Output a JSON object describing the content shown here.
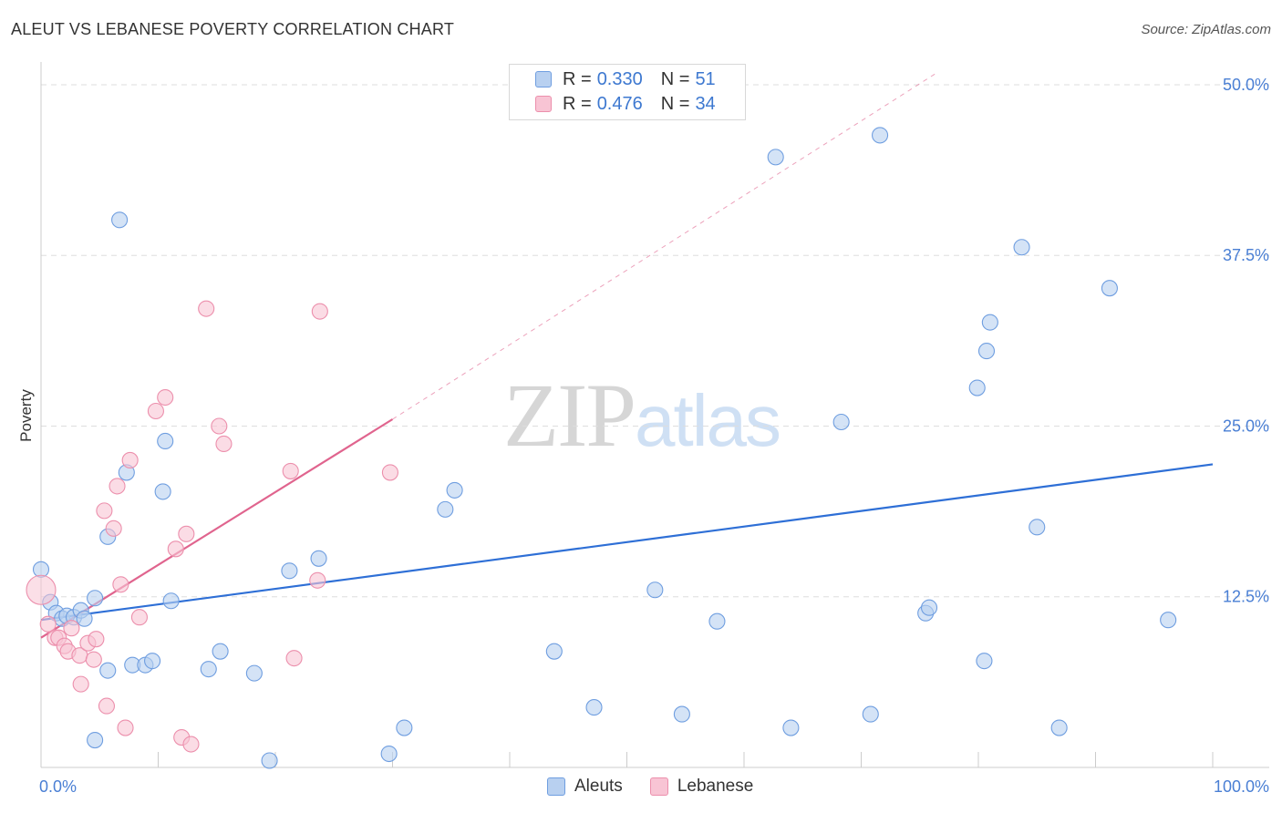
{
  "header": {
    "title": "ALEUT VS LEBANESE POVERTY CORRELATION CHART",
    "source": "Source: ZipAtlas.com"
  },
  "watermark": {
    "zip": "ZIP",
    "atlas": "atlas"
  },
  "legend": {
    "rows": [
      {
        "r_label": "R =",
        "r_value": "0.330",
        "n_label": "N =",
        "n_value": "51"
      },
      {
        "r_label": "R =",
        "r_value": "0.476",
        "n_label": "N =",
        "n_value": "34"
      }
    ]
  },
  "bottom_legend": {
    "aleuts": "Aleuts",
    "lebanese": "Lebanese"
  },
  "colors": {
    "aleut_fill": "#b8d0f0",
    "aleut_stroke": "#6f9ee0",
    "aleut_line": "#2e6fd6",
    "lebanese_fill": "#f8c4d4",
    "lebanese_stroke": "#ec8fac",
    "lebanese_line": "#e0648e",
    "grid": "#dddddd",
    "axis": "#cccccc",
    "tick_text": "#4a7fd4"
  },
  "chart_data": {
    "type": "scatter",
    "title": "ALEUT VS LEBANESE POVERTY CORRELATION CHART",
    "xlabel": "",
    "ylabel": "Poverty",
    "xlim": [
      0,
      100
    ],
    "ylim": [
      0,
      51
    ],
    "x_tick_labels": [
      {
        "value": 0,
        "label": "0.0%"
      },
      {
        "value": 100,
        "label": "100.0%"
      }
    ],
    "y_tick_labels": [
      {
        "value": 12.5,
        "label": "12.5%"
      },
      {
        "value": 25.0,
        "label": "25.0%"
      },
      {
        "value": 37.5,
        "label": "37.5%"
      },
      {
        "value": 50.0,
        "label": "50.0%"
      }
    ],
    "series": [
      {
        "name": "Aleuts",
        "r": 0.33,
        "n": 51,
        "trend": {
          "x": [
            0,
            100
          ],
          "y": [
            10.8,
            22.2
          ],
          "dashed_extension": false
        },
        "points": [
          [
            0.0,
            14.5
          ],
          [
            0.8,
            12.1
          ],
          [
            1.3,
            11.3
          ],
          [
            1.8,
            10.9
          ],
          [
            2.2,
            11.1
          ],
          [
            2.8,
            11.0
          ],
          [
            3.4,
            11.5
          ],
          [
            3.7,
            10.9
          ],
          [
            4.6,
            2.0
          ],
          [
            4.6,
            12.4
          ],
          [
            5.7,
            7.1
          ],
          [
            6.7,
            40.1
          ],
          [
            7.3,
            21.6
          ],
          [
            7.8,
            7.5
          ],
          [
            5.7,
            16.9
          ],
          [
            8.9,
            7.5
          ],
          [
            9.5,
            7.8
          ],
          [
            10.4,
            20.2
          ],
          [
            10.6,
            23.9
          ],
          [
            11.1,
            12.2
          ],
          [
            14.3,
            7.2
          ],
          [
            15.3,
            8.5
          ],
          [
            18.2,
            6.9
          ],
          [
            19.5,
            0.5
          ],
          [
            21.2,
            14.4
          ],
          [
            23.7,
            15.3
          ],
          [
            29.7,
            1.0
          ],
          [
            31.0,
            2.9
          ],
          [
            34.5,
            18.9
          ],
          [
            35.3,
            20.3
          ],
          [
            43.8,
            8.5
          ],
          [
            47.2,
            4.4
          ],
          [
            52.4,
            13.0
          ],
          [
            54.7,
            3.9
          ],
          [
            57.7,
            10.7
          ],
          [
            62.7,
            44.7
          ],
          [
            64.0,
            2.9
          ],
          [
            68.3,
            25.3
          ],
          [
            70.8,
            3.9
          ],
          [
            71.6,
            46.3
          ],
          [
            75.5,
            11.3
          ],
          [
            75.8,
            11.7
          ],
          [
            79.9,
            27.8
          ],
          [
            80.5,
            7.8
          ],
          [
            80.7,
            30.5
          ],
          [
            81.0,
            32.6
          ],
          [
            83.7,
            38.1
          ],
          [
            85.0,
            17.6
          ],
          [
            86.9,
            2.9
          ],
          [
            91.2,
            35.1
          ],
          [
            96.2,
            10.8
          ]
        ]
      },
      {
        "name": "Lebanese",
        "r": 0.476,
        "n": 34,
        "trend": {
          "x": [
            0,
            30.0
          ],
          "y": [
            9.5,
            25.5
          ],
          "dashed_to": [
            76.5,
            50.9
          ]
        },
        "points": [
          [
            0.0,
            13.0
          ],
          [
            0.6,
            10.5
          ],
          [
            1.2,
            9.5
          ],
          [
            1.5,
            9.5
          ],
          [
            2.0,
            8.9
          ],
          [
            2.3,
            8.5
          ],
          [
            2.6,
            10.2
          ],
          [
            3.3,
            8.2
          ],
          [
            3.4,
            6.1
          ],
          [
            4.0,
            9.1
          ],
          [
            4.5,
            7.9
          ],
          [
            4.7,
            9.4
          ],
          [
            5.4,
            18.8
          ],
          [
            5.6,
            4.5
          ],
          [
            6.2,
            17.5
          ],
          [
            6.5,
            20.6
          ],
          [
            6.8,
            13.4
          ],
          [
            7.2,
            2.9
          ],
          [
            7.6,
            22.5
          ],
          [
            8.4,
            11.0
          ],
          [
            9.8,
            26.1
          ],
          [
            10.6,
            27.1
          ],
          [
            11.5,
            16.0
          ],
          [
            12.0,
            2.2
          ],
          [
            12.4,
            17.1
          ],
          [
            12.8,
            1.7
          ],
          [
            14.1,
            33.6
          ],
          [
            15.2,
            25.0
          ],
          [
            15.6,
            23.7
          ],
          [
            21.3,
            21.7
          ],
          [
            21.6,
            8.0
          ],
          [
            23.6,
            13.7
          ],
          [
            23.8,
            33.4
          ],
          [
            29.8,
            21.6
          ]
        ]
      }
    ]
  }
}
